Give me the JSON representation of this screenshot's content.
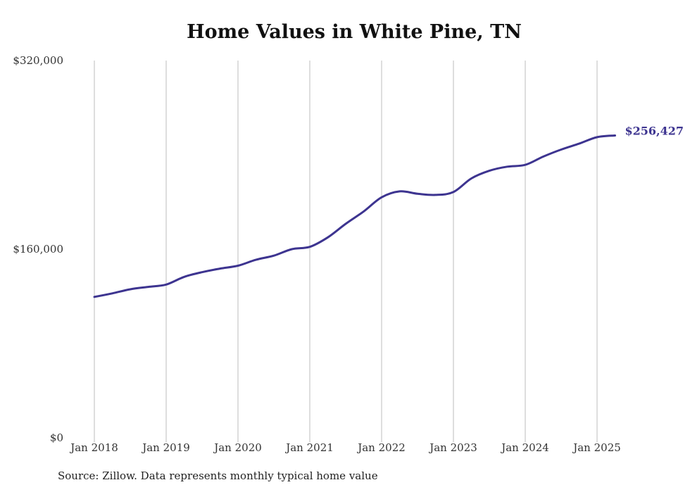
{
  "chart_data": {
    "type": "line",
    "title": "Home Values in White Pine, TN",
    "xlabel": "",
    "ylabel": "",
    "ylim": [
      0,
      320000
    ],
    "xlim": [
      "2018-01",
      "2025-04"
    ],
    "y_ticks": [
      "$0",
      "$160,000",
      "$320,000"
    ],
    "y_tick_values": [
      0,
      160000,
      320000
    ],
    "x_ticks": [
      "Jan 2018",
      "Jan 2019",
      "Jan 2020",
      "Jan 2021",
      "Jan 2022",
      "Jan 2023",
      "Jan 2024",
      "Jan 2025"
    ],
    "x_tick_values": [
      "2018-01",
      "2019-01",
      "2020-01",
      "2021-01",
      "2022-01",
      "2023-01",
      "2024-01",
      "2025-01"
    ],
    "grid": "vertical",
    "end_label": "$256,427",
    "line_color": "#3d3490",
    "series": [
      {
        "name": "",
        "x": [
          "2018-01",
          "2018-04",
          "2018-07",
          "2018-10",
          "2019-01",
          "2019-04",
          "2019-07",
          "2019-10",
          "2020-01",
          "2020-04",
          "2020-07",
          "2020-10",
          "2021-01",
          "2021-04",
          "2021-07",
          "2021-10",
          "2022-01",
          "2022-04",
          "2022-07",
          "2022-10",
          "2023-01",
          "2023-04",
          "2023-07",
          "2023-10",
          "2024-01",
          "2024-04",
          "2024-07",
          "2024-10",
          "2025-01",
          "2025-04"
        ],
        "values": [
          119500,
          122500,
          126000,
          128000,
          130000,
          136500,
          140500,
          143500,
          146000,
          151000,
          154500,
          160000,
          162000,
          170000,
          181500,
          192000,
          204000,
          209000,
          207000,
          206000,
          208500,
          220000,
          226500,
          230000,
          231500,
          238500,
          244500,
          249500,
          255000,
          256427
        ]
      }
    ]
  },
  "source": "Source: Zillow. Data represents monthly typical home value"
}
